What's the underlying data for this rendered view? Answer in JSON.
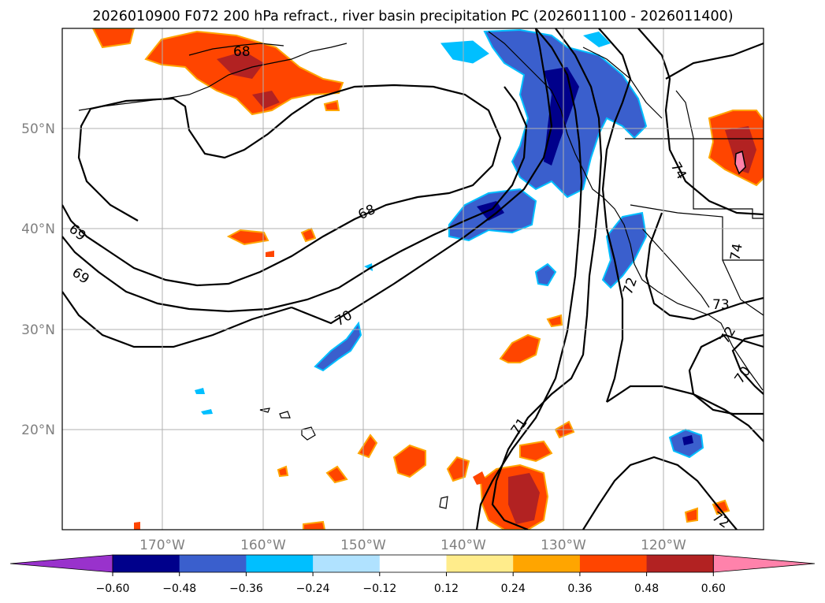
{
  "title": "2026010900 F072 200 hPa refract., river basin precipitation PC (2026011100 - 2026011400)",
  "map": {
    "lon_range": [
      -180,
      -110
    ],
    "lat_range": [
      10,
      60
    ],
    "lon_ticks": [
      -170,
      -160,
      -150,
      -140,
      -130,
      -120
    ],
    "lon_tick_labels": [
      "170°W",
      "160°W",
      "150°W",
      "140°W",
      "130°W",
      "120°W"
    ],
    "lat_ticks": [
      20,
      30,
      40,
      50
    ],
    "lat_tick_labels": [
      "20°N",
      "30°N",
      "40°N",
      "50°N"
    ],
    "grid": true
  },
  "contour_labels": [
    "68",
    "68",
    "69",
    "69",
    "70",
    "71",
    "72",
    "72",
    "73",
    "74",
    "74",
    "70",
    "72"
  ],
  "colorbar": {
    "tick_labels": [
      "−0.60",
      "−0.48",
      "−0.36",
      "−0.24",
      "−0.12",
      "0.12",
      "0.24",
      "0.36",
      "0.48",
      "0.60"
    ],
    "colors": [
      "#9932cc",
      "#00008b",
      "#3a5fcd",
      "#00bfff",
      "#b0e2ff",
      "#ffffff",
      "#ffec8b",
      "#ffa500",
      "#ff4500",
      "#b22222",
      "#ff82ab"
    ]
  }
}
